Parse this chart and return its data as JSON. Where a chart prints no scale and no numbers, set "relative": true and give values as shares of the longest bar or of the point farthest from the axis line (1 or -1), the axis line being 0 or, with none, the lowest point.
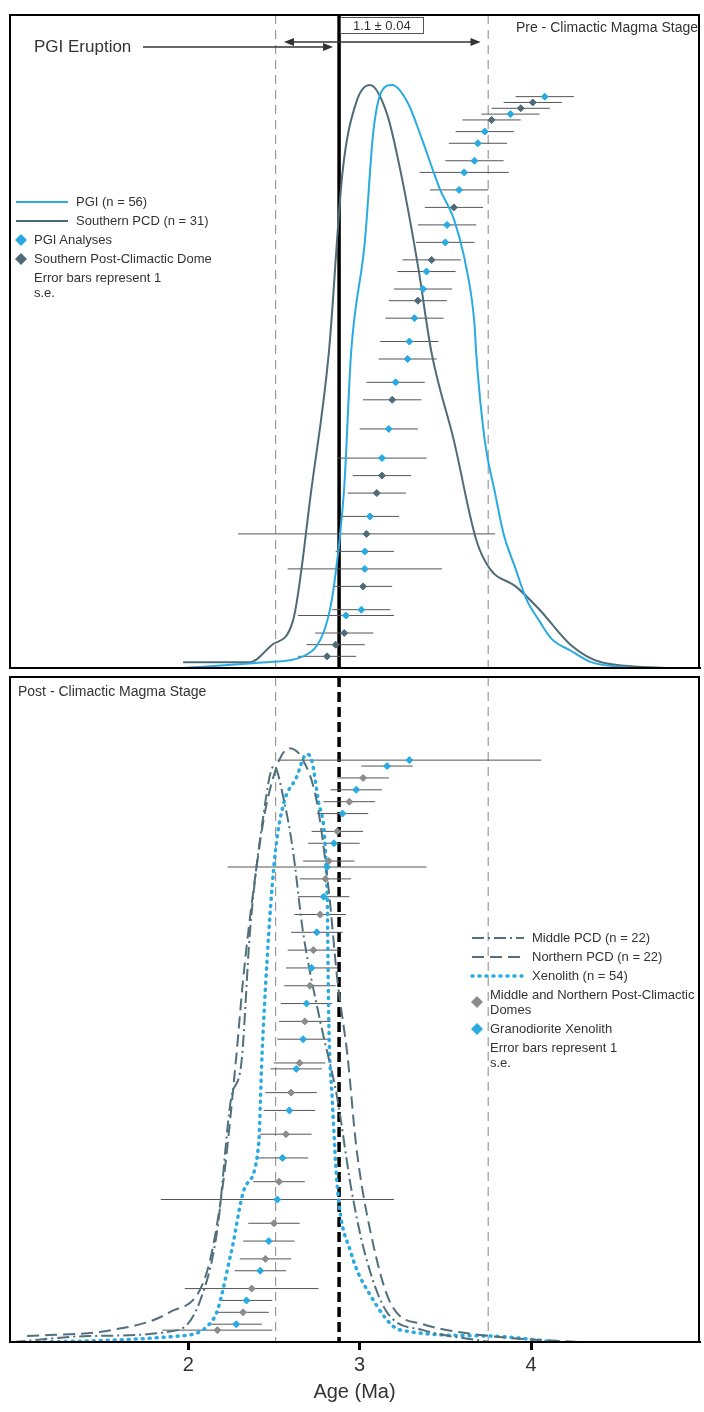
{
  "chart_data": [
    {
      "type": "line",
      "relative": true,
      "xlim": [
        0.96,
        4.98
      ],
      "tick_labels": false,
      "legend": "left",
      "annotations": [
        "PGI Eruption",
        "1.1 ± 0.04",
        "Pre - Climactic Magma Stage",
        "Error bars represent 1 s.e."
      ],
      "ref_lines": [
        {
          "axis": "x",
          "value": 2.51,
          "color": "#888888",
          "line_style": "dashed"
        },
        {
          "axis": "x",
          "value": 3.75,
          "color": "#888888",
          "line_style": "dashed"
        },
        {
          "axis": "x",
          "value": 2.88,
          "color": "#000000",
          "line_style": "solid"
        }
      ],
      "series": [
        {
          "name": "PGI (n = 56)",
          "color": "#29abe2",
          "line_style": "solid",
          "marker": "none",
          "x": [
            1.97,
            2.46,
            2.67,
            2.8,
            2.85,
            2.91,
            2.95,
            3.03,
            3.08,
            3.13,
            3.19,
            3.28,
            3.36,
            3.42,
            3.47,
            3.55,
            3.62,
            3.67,
            3.68,
            3.73,
            3.79,
            3.84,
            3.91,
            3.97,
            4.05,
            4.12,
            4.23,
            4.35,
            4.6
          ],
          "values": [
            0.0,
            0.01,
            0.02,
            0.07,
            0.14,
            0.31,
            0.54,
            0.73,
            0.92,
            0.99,
            1.0,
            0.97,
            0.91,
            0.86,
            0.82,
            0.77,
            0.69,
            0.59,
            0.54,
            0.39,
            0.3,
            0.23,
            0.17,
            0.12,
            0.08,
            0.05,
            0.03,
            0.01,
            0.0
          ]
        },
        {
          "name": "Southern PCD (n = 31)",
          "color": "#4f6b77",
          "line_style": "solid",
          "marker": "none",
          "x": [
            1.97,
            2.36,
            2.49,
            2.61,
            2.72,
            2.82,
            2.9,
            2.98,
            3.06,
            3.16,
            3.24,
            3.34,
            3.42,
            3.55,
            3.68,
            3.76,
            3.91,
            4.05,
            4.23,
            4.41,
            4.8
          ],
          "values": [
            0.01,
            0.01,
            0.04,
            0.08,
            0.31,
            0.54,
            0.85,
            0.97,
            1.0,
            0.95,
            0.85,
            0.69,
            0.54,
            0.39,
            0.22,
            0.17,
            0.14,
            0.1,
            0.04,
            0.01,
            0.0
          ]
        },
        {
          "name": "PGI Analyses",
          "type": "scatter",
          "color": "#29abe2",
          "marker": "diamond",
          "x": [
            4.08,
            3.88,
            3.73,
            3.69,
            3.67,
            3.61,
            3.58,
            3.51,
            3.5,
            3.39,
            3.37,
            3.32,
            3.29,
            3.28,
            3.21,
            3.17,
            3.13,
            3.06,
            3.03,
            3.03,
            3.01,
            2.92
          ],
          "values": [
            0.98,
            0.95,
            0.92,
            0.9,
            0.87,
            0.85,
            0.82,
            0.76,
            0.73,
            0.68,
            0.65,
            0.6,
            0.56,
            0.53,
            0.49,
            0.41,
            0.36,
            0.26,
            0.2,
            0.17,
            0.1,
            0.09
          ],
          "xerrors": [
            0.17,
            0.17,
            0.17,
            0.17,
            0.17,
            0.26,
            0.17,
            0.17,
            0.17,
            0.17,
            0.17,
            0.17,
            0.17,
            0.17,
            0.17,
            0.17,
            0.26,
            0.17,
            0.17,
            0.45,
            0.17,
            0.28
          ]
        },
        {
          "name": "Southern Post-Climactic Dome",
          "type": "scatter",
          "color": "#4f6b77",
          "marker": "diamond",
          "x": [
            4.01,
            3.94,
            3.77,
            3.55,
            3.42,
            3.34,
            3.19,
            3.13,
            3.1,
            3.04,
            3.02,
            2.91,
            2.86,
            2.81
          ],
          "values": [
            0.97,
            0.96,
            0.94,
            0.79,
            0.7,
            0.63,
            0.46,
            0.33,
            0.3,
            0.23,
            0.14,
            0.06,
            0.04,
            0.02
          ],
          "xerrors": [
            0.17,
            0.17,
            0.17,
            0.17,
            0.17,
            0.17,
            0.17,
            0.17,
            0.17,
            0.75,
            0.17,
            0.17,
            0.17,
            0.17
          ]
        }
      ]
    },
    {
      "type": "line",
      "relative": true,
      "xlim": [
        0.96,
        4.98
      ],
      "xticks": [
        2,
        3,
        4
      ],
      "xlabel": "Age (Ma)",
      "tick_labels": "x",
      "legend": "right",
      "annotations": [
        "Post - Climactic Magma Stage",
        "Error bars represent 1 s.e."
      ],
      "ref_lines": [
        {
          "axis": "x",
          "value": 2.51,
          "color": "#888888",
          "line_style": "dashed"
        },
        {
          "axis": "x",
          "value": 3.75,
          "color": "#888888",
          "line_style": "dashed"
        },
        {
          "axis": "x",
          "value": 2.88,
          "color": "#000000",
          "line_style": "dashed"
        }
      ],
      "series": [
        {
          "name": "Middle PCD (n = 22)",
          "color": "#52707c",
          "line_style": "dashdot",
          "marker": "none",
          "x": [
            0.98,
            1.42,
            1.94,
            2.07,
            2.17,
            2.25,
            2.31,
            2.36,
            2.43,
            2.5,
            2.56,
            2.61,
            2.67,
            2.77,
            2.87,
            2.95,
            3.03,
            3.16,
            3.37,
            3.76
          ],
          "values": [
            0.0,
            0.01,
            0.02,
            0.07,
            0.19,
            0.41,
            0.47,
            0.69,
            0.87,
            0.97,
            0.91,
            0.83,
            0.69,
            0.54,
            0.41,
            0.26,
            0.15,
            0.05,
            0.02,
            0.0
          ]
        },
        {
          "name": "Northern PCD (n = 22)",
          "color": "#52707c",
          "line_style": "dashed",
          "marker": "none",
          "x": [
            1.06,
            1.55,
            1.89,
            2.1,
            2.2,
            2.28,
            2.32,
            2.38,
            2.46,
            2.59,
            2.67,
            2.75,
            2.82,
            2.87,
            2.93,
            2.98,
            3.06,
            3.19,
            3.37,
            3.76,
            4.28
          ],
          "values": [
            0.01,
            0.02,
            0.05,
            0.11,
            0.26,
            0.48,
            0.61,
            0.76,
            0.91,
            1.0,
            0.98,
            0.91,
            0.76,
            0.61,
            0.48,
            0.33,
            0.19,
            0.06,
            0.03,
            0.01,
            0.0
          ]
        },
        {
          "name": "Xenolith (n = 54)",
          "color": "#29abe2",
          "line_style": "dotted",
          "marker": "none",
          "x": [
            1.16,
            1.94,
            2.15,
            2.25,
            2.33,
            2.41,
            2.43,
            2.47,
            2.51,
            2.56,
            2.63,
            2.69,
            2.72,
            2.76,
            2.81,
            2.82,
            2.84,
            2.87,
            2.95,
            3.06,
            3.24,
            3.76,
            4.15
          ],
          "values": [
            0.0,
            0.01,
            0.04,
            0.15,
            0.26,
            0.33,
            0.48,
            0.69,
            0.83,
            0.91,
            0.95,
            0.99,
            0.98,
            0.91,
            0.76,
            0.54,
            0.41,
            0.26,
            0.15,
            0.08,
            0.02,
            0.01,
            0.0
          ]
        },
        {
          "name": "Middle and Northern Post-Climactic Domes",
          "type": "scatter",
          "color": "#8c8c8c",
          "marker": "diamond",
          "x": [
            3.02,
            2.94,
            2.87,
            2.82,
            2.8,
            2.77,
            2.73,
            2.71,
            2.68,
            2.65,
            2.6,
            2.57,
            2.53,
            2.5,
            2.45,
            2.37,
            2.32,
            2.17
          ],
          "values": [
            0.95,
            0.91,
            0.86,
            0.81,
            0.78,
            0.72,
            0.66,
            0.6,
            0.54,
            0.47,
            0.42,
            0.35,
            0.27,
            0.2,
            0.14,
            0.09,
            0.05,
            0.02
          ],
          "xerrors": [
            0.15,
            0.15,
            0.15,
            0.15,
            0.15,
            0.15,
            0.15,
            0.15,
            0.15,
            0.15,
            0.15,
            0.15,
            0.15,
            0.15,
            0.15,
            0.39,
            0.15,
            0.32
          ]
        },
        {
          "name": "Granodiorite Xenolith",
          "type": "scatter",
          "color": "#29abe2",
          "marker": "diamond",
          "x": [
            3.29,
            3.16,
            2.98,
            2.9,
            2.85,
            2.81,
            2.79,
            2.75,
            2.72,
            2.69,
            2.67,
            2.63,
            2.59,
            2.55,
            2.52,
            2.47,
            2.42,
            2.34,
            2.28
          ],
          "values": [
            0.98,
            0.97,
            0.93,
            0.89,
            0.84,
            0.8,
            0.75,
            0.69,
            0.63,
            0.57,
            0.51,
            0.46,
            0.39,
            0.31,
            0.24,
            0.17,
            0.12,
            0.07,
            0.03
          ],
          "xerrors": [
            0.77,
            0.15,
            0.15,
            0.15,
            0.15,
            0.58,
            0.15,
            0.15,
            0.15,
            0.15,
            0.15,
            0.15,
            0.15,
            0.15,
            0.68,
            0.15,
            0.15,
            0.15,
            0.15
          ]
        }
      ]
    }
  ]
}
